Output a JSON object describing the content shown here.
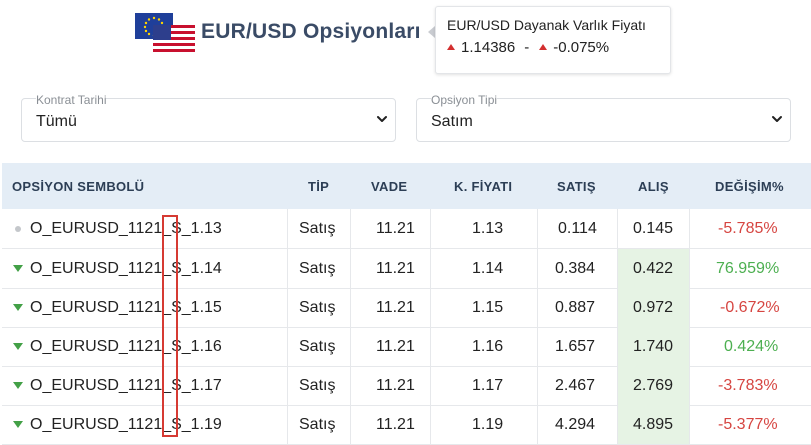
{
  "header": {
    "title": "EUR/USD Opsiyonları",
    "price_label": "EUR/USD Dayanak Varlık Fiyatı",
    "price_value": "1.14386",
    "price_dash": "-",
    "price_change": "-0.075%",
    "flag_icon": "eur-usd-flag-icon"
  },
  "filters": {
    "contract_date": {
      "label": "Kontrat Tarihi",
      "value": "Tümü"
    },
    "option_type": {
      "label": "Opsiyon Tipi",
      "value": "Satım"
    }
  },
  "table": {
    "columns": [
      "OPSİYON SEMBOLÜ",
      "TİP",
      "VADE",
      "K. FİYATI",
      "SATIŞ",
      "ALIŞ",
      "DEĞİŞİM%"
    ],
    "rows": [
      {
        "symbol": "O_EURUSD_1121_S_1.13",
        "type": "Satış",
        "maturity": "11.21",
        "strike": "1.13",
        "bid": "0.114",
        "ask": "0.145",
        "change": "-5.785%",
        "indicator": "neutral-dot",
        "change_color": "#d64541"
      },
      {
        "symbol": "O_EURUSD_1121_S_1.14",
        "type": "Satış",
        "maturity": "11.21",
        "strike": "1.14",
        "bid": "0.384",
        "ask": "0.422",
        "change": "76.959%",
        "indicator": "down-triangle",
        "change_color": "#4caf50"
      },
      {
        "symbol": "O_EURUSD_1121_S_1.15",
        "type": "Satış",
        "maturity": "11.21",
        "strike": "1.15",
        "bid": "0.887",
        "ask": "0.972",
        "change": "-0.672%",
        "indicator": "down-triangle",
        "change_color": "#d64541"
      },
      {
        "symbol": "O_EURUSD_1121_S_1.16",
        "type": "Satış",
        "maturity": "11.21",
        "strike": "1.16",
        "bid": "1.657",
        "ask": "1.740",
        "change": "0.424%",
        "indicator": "down-triangle",
        "change_color": "#4caf50"
      },
      {
        "symbol": "O_EURUSD_1121_S_1.17",
        "type": "Satış",
        "maturity": "11.21",
        "strike": "1.17",
        "bid": "2.467",
        "ask": "2.769",
        "change": "-3.783%",
        "indicator": "down-triangle",
        "change_color": "#d64541"
      },
      {
        "symbol": "O_EURUSD_1121_S_1.19",
        "type": "Satış",
        "maturity": "11.21",
        "strike": "1.19",
        "bid": "4.294",
        "ask": "4.895",
        "change": "-5.377%",
        "indicator": "down-triangle",
        "change_color": "#d64541"
      }
    ]
  },
  "colors": {
    "header_bg": "#e4edf6",
    "ask_highlight": "#e6f3e4",
    "negative": "#d64541",
    "positive": "#4caf50",
    "annotation_box": "#d63a33"
  }
}
